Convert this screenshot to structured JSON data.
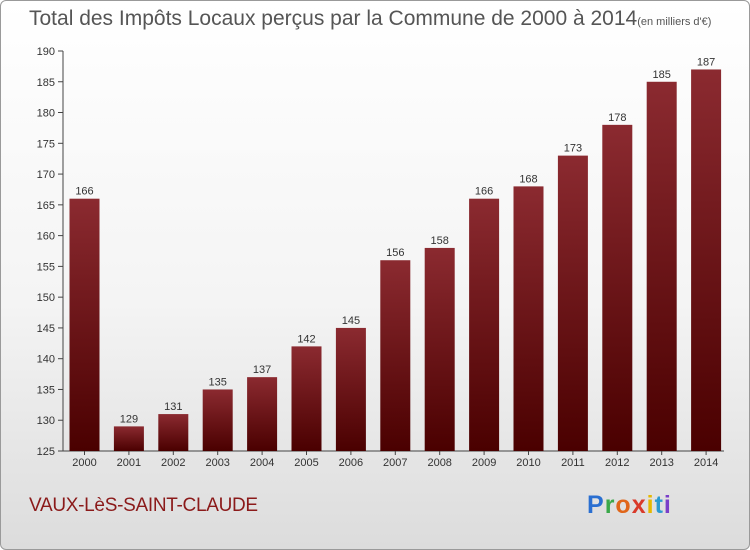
{
  "title": {
    "main": "Total des Impôts Locaux perçus par la Commune de 2000 à 2014",
    "unit": "(en milliers d'€)"
  },
  "commune": "VAUX-LèS-SAINT-CLAUDE",
  "logo": {
    "text": "Proxiti",
    "letter_colors": [
      "#2a6fd1",
      "#3aa84a",
      "#e0661a",
      "#d93a2a",
      "#e6b800",
      "#2a9ad1",
      "#7a3fc9"
    ]
  },
  "chart_data": {
    "type": "bar",
    "categories": [
      "2000",
      "2001",
      "2002",
      "2003",
      "2004",
      "2005",
      "2006",
      "2007",
      "2008",
      "2009",
      "2010",
      "2011",
      "2012",
      "2013",
      "2014"
    ],
    "values": [
      166,
      129,
      131,
      135,
      137,
      142,
      145,
      156,
      158,
      166,
      168,
      173,
      178,
      185,
      187
    ],
    "ylim": [
      125,
      190
    ],
    "yticks": [
      125,
      130,
      135,
      140,
      145,
      150,
      155,
      160,
      165,
      170,
      175,
      180,
      185,
      190
    ],
    "grid": false,
    "bar_color_light": "#8b2a30",
    "bar_color_dark": "#4a0000"
  }
}
